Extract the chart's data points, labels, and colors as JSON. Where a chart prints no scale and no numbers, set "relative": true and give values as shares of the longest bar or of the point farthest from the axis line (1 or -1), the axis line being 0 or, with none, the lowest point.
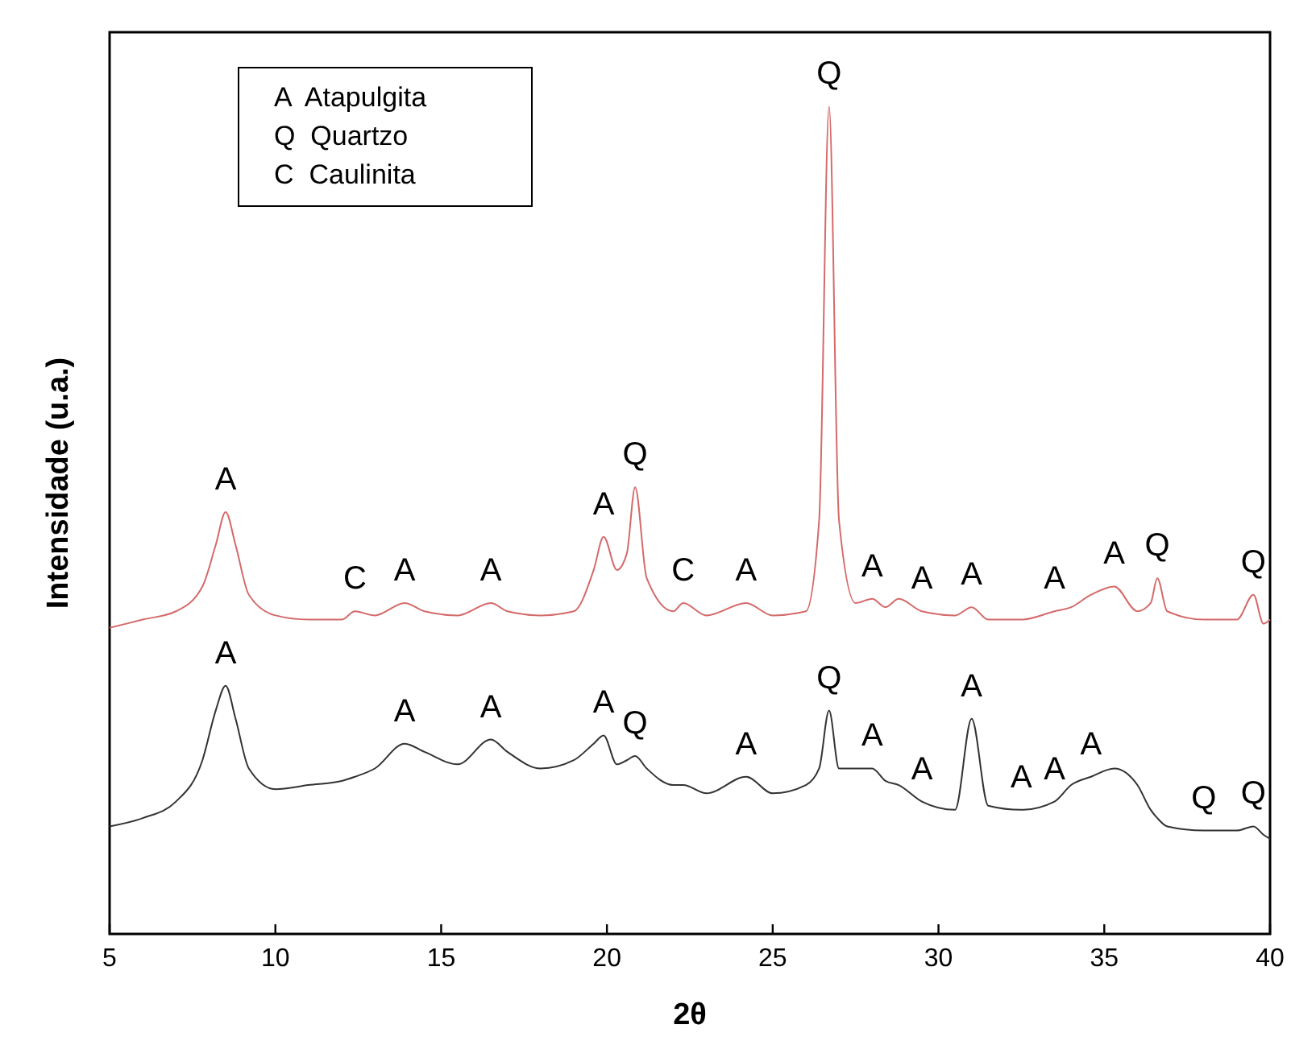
{
  "chart_data": {
    "type": "line",
    "relative": true,
    "xlabel": "2θ",
    "ylabel": "Intensidade (u.a.)",
    "xlim": [
      5,
      40
    ],
    "xticks": [
      5,
      10,
      15,
      20,
      25,
      30,
      35,
      40
    ],
    "grid": false,
    "x": [
      5,
      6,
      7,
      7.8,
      8.2,
      8.5,
      8.8,
      9.2,
      10,
      11,
      12,
      12.4,
      13,
      13.9,
      14.5,
      15.5,
      16.5,
      17,
      18,
      19,
      19.6,
      19.9,
      20.3,
      20.6,
      20.85,
      21.2,
      22,
      22.3,
      23,
      24.2,
      25,
      26,
      26.4,
      26.7,
      27,
      27.5,
      28,
      28.4,
      28.8,
      29.5,
      30.5,
      31,
      31.5,
      32.5,
      33.5,
      34,
      34.6,
      35.3,
      36,
      36.4,
      36.6,
      36.9,
      38,
      39,
      39.5,
      39.8,
      40
    ],
    "series": [
      {
        "color": "#d46a6a",
        "values": [
          0.37,
          0.38,
          0.39,
          0.42,
          0.47,
          0.51,
          0.47,
          0.41,
          0.385,
          0.38,
          0.38,
          0.39,
          0.385,
          0.4,
          0.39,
          0.385,
          0.4,
          0.39,
          0.385,
          0.39,
          0.44,
          0.48,
          0.44,
          0.46,
          0.54,
          0.43,
          0.39,
          0.4,
          0.385,
          0.4,
          0.385,
          0.39,
          0.5,
          1.0,
          0.5,
          0.4,
          0.405,
          0.395,
          0.405,
          0.39,
          0.385,
          0.395,
          0.38,
          0.38,
          0.39,
          0.395,
          0.41,
          0.42,
          0.39,
          0.4,
          0.43,
          0.39,
          0.38,
          0.38,
          0.41,
          0.375,
          0.38
        ]
      },
      {
        "color": "#333333",
        "values": [
          0.13,
          0.14,
          0.16,
          0.21,
          0.27,
          0.3,
          0.26,
          0.2,
          0.175,
          0.18,
          0.185,
          0.19,
          0.2,
          0.23,
          0.22,
          0.205,
          0.235,
          0.22,
          0.2,
          0.21,
          0.23,
          0.24,
          0.205,
          0.21,
          0.215,
          0.2,
          0.18,
          0.18,
          0.17,
          0.19,
          0.17,
          0.18,
          0.2,
          0.27,
          0.2,
          0.2,
          0.2,
          0.185,
          0.18,
          0.16,
          0.15,
          0.26,
          0.155,
          0.15,
          0.16,
          0.18,
          0.19,
          0.2,
          0.18,
          0.15,
          0.14,
          0.13,
          0.125,
          0.125,
          0.13,
          0.12,
          0.115
        ]
      }
    ],
    "annotations": [
      "A  Atapulgita",
      "Q  Quartzo",
      "C  Caulinita",
      {
        "text": "A",
        "x": 8.5,
        "y": 0.51
      },
      {
        "text": "C",
        "x": 12.4,
        "y": 0.39
      },
      {
        "text": "A",
        "x": 13.9,
        "y": 0.4
      },
      {
        "text": "A",
        "x": 16.5,
        "y": 0.4
      },
      {
        "text": "A",
        "x": 19.9,
        "y": 0.48
      },
      {
        "text": "Q",
        "x": 20.85,
        "y": 0.54
      },
      {
        "text": "C",
        "x": 22.3,
        "y": 0.4
      },
      {
        "text": "A",
        "x": 24.2,
        "y": 0.4
      },
      {
        "text": "Q",
        "x": 26.7,
        "y": 1.0
      },
      {
        "text": "A",
        "x": 28,
        "y": 0.405
      },
      {
        "text": "A",
        "x": 29.5,
        "y": 0.39
      },
      {
        "text": "A",
        "x": 31,
        "y": 0.395
      },
      {
        "text": "A",
        "x": 33.5,
        "y": 0.39
      },
      {
        "text": "A",
        "x": 35.3,
        "y": 0.42
      },
      {
        "text": "Q",
        "x": 36.6,
        "y": 0.43
      },
      {
        "text": "Q",
        "x": 39.5,
        "y": 0.41
      },
      {
        "text": "A",
        "x": 8.5,
        "y": 0.3
      },
      {
        "text": "A",
        "x": 13.9,
        "y": 0.23
      },
      {
        "text": "A",
        "x": 16.5,
        "y": 0.235
      },
      {
        "text": "A",
        "x": 19.9,
        "y": 0.24
      },
      {
        "text": "Q",
        "x": 20.85,
        "y": 0.215
      },
      {
        "text": "A",
        "x": 24.2,
        "y": 0.19
      },
      {
        "text": "Q",
        "x": 26.7,
        "y": 0.27
      },
      {
        "text": "A",
        "x": 28,
        "y": 0.2
      },
      {
        "text": "A",
        "x": 29.5,
        "y": 0.16
      },
      {
        "text": "A",
        "x": 31,
        "y": 0.26
      },
      {
        "text": "A",
        "x": 32.5,
        "y": 0.15
      },
      {
        "text": "A",
        "x": 33.5,
        "y": 0.16
      },
      {
        "text": "A",
        "x": 34.6,
        "y": 0.19
      },
      {
        "text": "Q",
        "x": 38,
        "y": 0.125
      },
      {
        "text": "Q",
        "x": 39.5,
        "y": 0.13
      }
    ]
  }
}
